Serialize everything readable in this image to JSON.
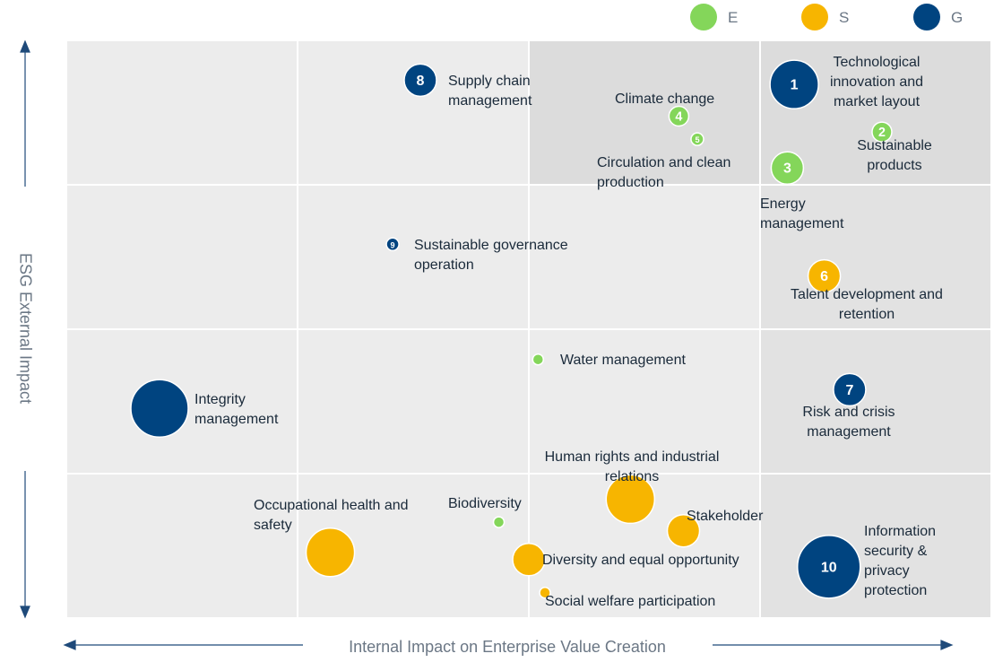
{
  "chart_data": {
    "type": "bubble",
    "xlabel": "Internal Impact on Enterprise Value Creation",
    "ylabel": "ESG External Impact",
    "xlim": [
      0,
      4
    ],
    "ylim": [
      0,
      4
    ],
    "series": [
      {
        "name": "E",
        "color": "#84d65a",
        "points": [
          {
            "label": "Climate change",
            "badge": "4",
            "x": 2.65,
            "y": 3.48,
            "size": 11
          },
          {
            "label": "Circulation and clean production",
            "badge": "5",
            "x": 2.73,
            "y": 3.32,
            "size": 7
          },
          {
            "label": "Sustainable products",
            "badge": "2",
            "x": 3.53,
            "y": 3.37,
            "size": 11
          },
          {
            "label": "Energy management",
            "badge": "3",
            "x": 3.12,
            "y": 3.12,
            "size": 18
          },
          {
            "label": "Water management",
            "x": 2.04,
            "y": 1.79,
            "size": 6
          },
          {
            "label": "Biodiversity",
            "x": 1.87,
            "y": 0.66,
            "size": 6
          }
        ]
      },
      {
        "name": "S",
        "color": "#f7b500",
        "points": [
          {
            "label": "Talent development and retention",
            "badge": "6",
            "x": 3.28,
            "y": 2.37,
            "size": 18
          },
          {
            "label": "Human rights and industrial relations",
            "x": 2.44,
            "y": 0.82,
            "size": 27
          },
          {
            "label": "Stakeholder",
            "x": 2.67,
            "y": 0.6,
            "size": 18
          },
          {
            "label": "Occupational health and safety",
            "x": 1.14,
            "y": 0.45,
            "size": 27
          },
          {
            "label": "Diversity and equal opportunity",
            "x": 2.0,
            "y": 0.4,
            "size": 18
          },
          {
            "label": "Social welfare participation",
            "x": 2.07,
            "y": 0.17,
            "size": 6
          }
        ]
      },
      {
        "name": "G",
        "color": "#004480",
        "points": [
          {
            "label": "Technological innovation and market layout",
            "badge": "1",
            "x": 3.15,
            "y": 3.7,
            "size": 27
          },
          {
            "label": "Supply chain management",
            "badge": "8",
            "x": 1.53,
            "y": 3.73,
            "size": 18
          },
          {
            "label": "Sustainable governance operation",
            "badge": "9",
            "x": 1.41,
            "y": 2.59,
            "size": 7
          },
          {
            "label": "Integrity management",
            "x": 0.4,
            "y": 1.45,
            "size": 32
          },
          {
            "label": "Risk and crisis management",
            "badge": "7",
            "x": 3.39,
            "y": 1.58,
            "size": 18
          },
          {
            "label": "Information security & privacy protection",
            "badge": "10",
            "x": 3.3,
            "y": 0.35,
            "size": 35
          }
        ]
      }
    ]
  }
}
